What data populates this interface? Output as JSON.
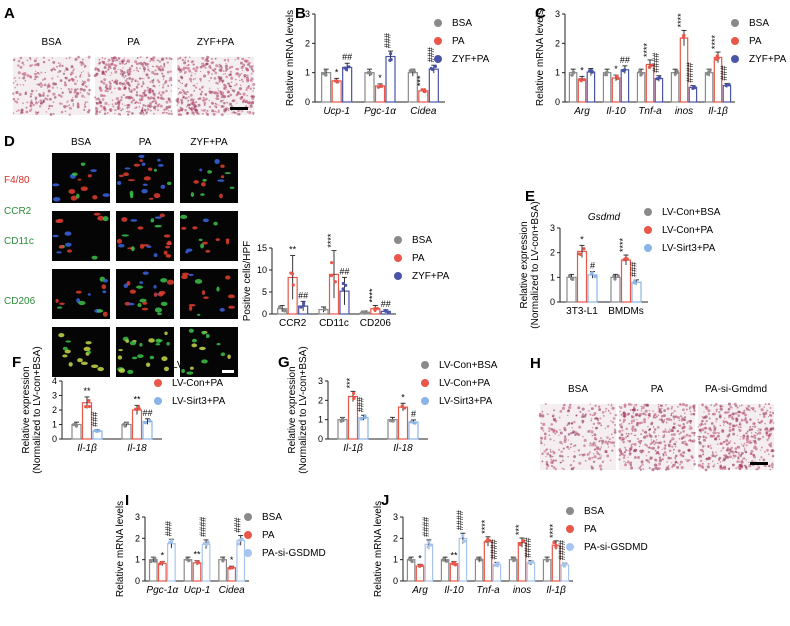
{
  "panels": [
    {
      "id": "A",
      "letter": "A",
      "kind": "micro",
      "labels": [
        "BSA",
        "PA",
        "ZYF+PA"
      ]
    },
    {
      "id": "D",
      "letter": "D",
      "kind": "fluor",
      "col_labels": [
        "BSA",
        "PA",
        "ZYF+PA"
      ],
      "row_labels": [
        {
          "text": "F4/80",
          "color": "#d8312a"
        },
        {
          "text": "CCR2",
          "color": "#2e8b3a"
        },
        {
          "text": "CD11c",
          "color": "#2e8b3a"
        },
        {
          "text": "CD206",
          "color": "#2e8b3a"
        }
      ]
    },
    {
      "id": "H",
      "letter": "H",
      "kind": "micro",
      "labels": [
        "BSA",
        "PA",
        "PA-si-Gmdmd"
      ]
    }
  ],
  "chart_data": [
    {
      "id": "B",
      "letter": "B",
      "type": "bar",
      "title": "",
      "ylabel": "Relative mRNA levels",
      "ylim": [
        0,
        3
      ],
      "yticks": [
        0,
        1,
        2,
        3
      ],
      "categories": [
        "Ucp-1",
        "Pgc-1α",
        "Cidea"
      ],
      "italic_categories": true,
      "series": [
        {
          "name": "BSA",
          "color": "#8a8a8a",
          "values": [
            1.0,
            1.0,
            1.0
          ]
        },
        {
          "name": "PA",
          "color": "#e8574a",
          "values": [
            0.72,
            0.55,
            0.38
          ]
        },
        {
          "name": "ZYF+PA",
          "color": "#4a54a8",
          "values": [
            1.18,
            1.55,
            1.12
          ]
        }
      ],
      "annotations": [
        {
          "cat": 0,
          "ser": 1,
          "text": "*"
        },
        {
          "cat": 0,
          "ser": 2,
          "text": "##"
        },
        {
          "cat": 1,
          "ser": 1,
          "text": "*"
        },
        {
          "cat": 1,
          "ser": 2,
          "text": "###"
        },
        {
          "cat": 2,
          "ser": 1,
          "text": "***"
        },
        {
          "cat": 2,
          "ser": 2,
          "text": "###"
        }
      ]
    },
    {
      "id": "C",
      "letter": "C",
      "type": "bar",
      "title": "",
      "ylabel": "Relative mRNA levels",
      "ylim": [
        0,
        3
      ],
      "yticks": [
        0,
        1,
        2,
        3
      ],
      "categories": [
        "Arg",
        "Il-10",
        "Tnf-a",
        "inos",
        "Il-1β"
      ],
      "italic_categories": true,
      "series": [
        {
          "name": "BSA",
          "color": "#8a8a8a",
          "values": [
            1.0,
            1.0,
            1.0,
            1.0,
            1.0
          ]
        },
        {
          "name": "PA",
          "color": "#e8574a",
          "values": [
            0.78,
            0.82,
            1.28,
            2.18,
            1.52
          ]
        },
        {
          "name": "ZYF+PA",
          "color": "#4a54a8",
          "values": [
            1.02,
            1.1,
            0.8,
            0.5,
            0.56
          ]
        }
      ],
      "annotations": [
        {
          "cat": 0,
          "ser": 1,
          "text": "*"
        },
        {
          "cat": 1,
          "ser": 1,
          "text": "*"
        },
        {
          "cat": 1,
          "ser": 2,
          "text": "##"
        },
        {
          "cat": 2,
          "ser": 1,
          "text": "****"
        },
        {
          "cat": 2,
          "ser": 2,
          "text": "####"
        },
        {
          "cat": 3,
          "ser": 1,
          "text": "****"
        },
        {
          "cat": 3,
          "ser": 2,
          "text": "####"
        },
        {
          "cat": 4,
          "ser": 1,
          "text": "****"
        },
        {
          "cat": 4,
          "ser": 2,
          "text": "###"
        }
      ]
    },
    {
      "id": "D2",
      "letter": "",
      "type": "bar",
      "title": "",
      "ylabel": "Positive cells/HPF",
      "ylim": [
        0,
        15
      ],
      "yticks": [
        0,
        5,
        10,
        15
      ],
      "categories": [
        "CCR2",
        "CD11c",
        "CD206"
      ],
      "italic_categories": false,
      "series": [
        {
          "name": "BSA",
          "color": "#8a8a8a",
          "values": [
            1.2,
            1.0,
            0.4
          ]
        },
        {
          "name": "PA",
          "color": "#e8574a",
          "values": [
            8.3,
            9.0,
            1.2
          ]
        },
        {
          "name": "ZYF+PA",
          "color": "#4a54a8",
          "values": [
            1.8,
            5.2,
            0.6
          ]
        }
      ],
      "annotations": [
        {
          "cat": 0,
          "ser": 1,
          "text": "**"
        },
        {
          "cat": 0,
          "ser": 2,
          "text": "##"
        },
        {
          "cat": 1,
          "ser": 1,
          "text": "****"
        },
        {
          "cat": 1,
          "ser": 2,
          "text": "##"
        },
        {
          "cat": 2,
          "ser": 1,
          "text": "****"
        },
        {
          "cat": 2,
          "ser": 2,
          "text": "##"
        }
      ]
    },
    {
      "id": "E",
      "letter": "E",
      "type": "bar",
      "title": "Gsdmd",
      "ylabel": "Relative expression\n(Normalized to LV-con+BSA)",
      "ylim": [
        0,
        3
      ],
      "yticks": [
        0,
        1,
        2,
        3
      ],
      "categories": [
        "3T3-L1",
        "BMDMs"
      ],
      "italic_categories": false,
      "series": [
        {
          "name": "LV-Con+BSA",
          "color": "#8a8a8a",
          "values": [
            1.0,
            1.0
          ]
        },
        {
          "name": "LV-Con+PA",
          "color": "#e8574a",
          "values": [
            2.05,
            1.7
          ]
        },
        {
          "name": "LV-Sirt3+PA",
          "color": "#8ab4e8",
          "values": [
            1.1,
            0.8
          ]
        }
      ],
      "annotations": [
        {
          "cat": 0,
          "ser": 1,
          "text": "*"
        },
        {
          "cat": 0,
          "ser": 2,
          "text": "#"
        },
        {
          "cat": 1,
          "ser": 1,
          "text": "****"
        },
        {
          "cat": 1,
          "ser": 2,
          "text": "###"
        }
      ]
    },
    {
      "id": "F",
      "letter": "F",
      "type": "bar",
      "title": "",
      "ylabel": "Relative expression\n(Normalized to LV-con+BSA)",
      "ylim": [
        0,
        4
      ],
      "yticks": [
        0,
        1,
        2,
        3,
        4
      ],
      "categories": [
        "Il-1β",
        "Il-18"
      ],
      "italic_categories": true,
      "series": [
        {
          "name": "LV-Con+BSA",
          "color": "#8a8a8a",
          "values": [
            1.0,
            1.0
          ]
        },
        {
          "name": "LV-Con+PA",
          "color": "#e8574a",
          "values": [
            2.5,
            2.0
          ]
        },
        {
          "name": "LV-Sirt3+PA",
          "color": "#8ab4e8",
          "values": [
            0.55,
            1.2
          ]
        }
      ],
      "annotations": [
        {
          "cat": 0,
          "ser": 1,
          "text": "**"
        },
        {
          "cat": 0,
          "ser": 2,
          "text": "###"
        },
        {
          "cat": 1,
          "ser": 1,
          "text": "**"
        },
        {
          "cat": 1,
          "ser": 2,
          "text": "##"
        }
      ]
    },
    {
      "id": "G",
      "letter": "G",
      "type": "bar",
      "title": "",
      "ylabel": "Relative expression\n(Normalized to LV-con+BSA)",
      "ylim": [
        0,
        3
      ],
      "yticks": [
        0,
        1,
        2,
        3
      ],
      "categories": [
        "Il-1β",
        "Il-18"
      ],
      "italic_categories": true,
      "series": [
        {
          "name": "LV-Con+BSA",
          "color": "#8a8a8a",
          "values": [
            1.0,
            1.0
          ]
        },
        {
          "name": "LV-Con+PA",
          "color": "#e8574a",
          "values": [
            2.2,
            1.65
          ]
        },
        {
          "name": "LV-Sirt3+PA",
          "color": "#8ab4e8",
          "values": [
            1.1,
            0.88
          ]
        }
      ],
      "annotations": [
        {
          "cat": 0,
          "ser": 1,
          "text": "***"
        },
        {
          "cat": 0,
          "ser": 2,
          "text": "###"
        },
        {
          "cat": 1,
          "ser": 1,
          "text": "*"
        },
        {
          "cat": 1,
          "ser": 2,
          "text": "#"
        }
      ]
    },
    {
      "id": "I",
      "letter": "I",
      "type": "bar",
      "title": "",
      "ylabel": "Relative mRNA levels",
      "ylim": [
        0,
        3
      ],
      "yticks": [
        0,
        1,
        2,
        3
      ],
      "categories": [
        "Pgc-1α",
        "Ucp-1",
        "Cidea"
      ],
      "italic_categories": true,
      "series": [
        {
          "name": "BSA",
          "color": "#8a8a8a",
          "values": [
            1.0,
            1.0,
            1.0
          ]
        },
        {
          "name": "PA",
          "color": "#e8574a",
          "values": [
            0.82,
            0.85,
            0.62
          ]
        },
        {
          "name": "PA-si-GSDMD",
          "color": "#a6c4ee",
          "values": [
            1.75,
            1.72,
            1.9
          ]
        }
      ],
      "annotations": [
        {
          "cat": 0,
          "ser": 1,
          "text": "*"
        },
        {
          "cat": 0,
          "ser": 2,
          "text": "###"
        },
        {
          "cat": 1,
          "ser": 1,
          "text": "**"
        },
        {
          "cat": 1,
          "ser": 2,
          "text": "####"
        },
        {
          "cat": 2,
          "ser": 1,
          "text": "*"
        },
        {
          "cat": 2,
          "ser": 2,
          "text": "###"
        }
      ]
    },
    {
      "id": "J",
      "letter": "J",
      "type": "bar",
      "title": "",
      "ylabel": "Relative mRNA levels",
      "ylim": [
        0,
        3
      ],
      "yticks": [
        0,
        1,
        2,
        3
      ],
      "categories": [
        "Arg",
        "Il-10",
        "Tnf-a",
        "inos",
        "Il-1β"
      ],
      "italic_categories": true,
      "series": [
        {
          "name": "BSA",
          "color": "#8a8a8a",
          "values": [
            1.0,
            1.0,
            1.0,
            1.0,
            1.0
          ]
        },
        {
          "name": "PA",
          "color": "#e8574a",
          "values": [
            0.7,
            0.82,
            1.85,
            1.8,
            1.68
          ]
        },
        {
          "name": "PA-si-GSDMD",
          "color": "#a6c4ee",
          "values": [
            1.72,
            2.0,
            0.78,
            0.85,
            0.75
          ]
        }
      ],
      "annotations": [
        {
          "cat": 0,
          "ser": 1,
          "text": "*"
        },
        {
          "cat": 0,
          "ser": 2,
          "text": "####"
        },
        {
          "cat": 1,
          "ser": 1,
          "text": "**"
        },
        {
          "cat": 1,
          "ser": 2,
          "text": "####"
        },
        {
          "cat": 2,
          "ser": 1,
          "text": "****"
        },
        {
          "cat": 2,
          "ser": 2,
          "text": "####"
        },
        {
          "cat": 3,
          "ser": 1,
          "text": "***"
        },
        {
          "cat": 3,
          "ser": 2,
          "text": "####"
        },
        {
          "cat": 4,
          "ser": 1,
          "text": "****"
        },
        {
          "cat": 4,
          "ser": 2,
          "text": "####"
        }
      ]
    }
  ]
}
